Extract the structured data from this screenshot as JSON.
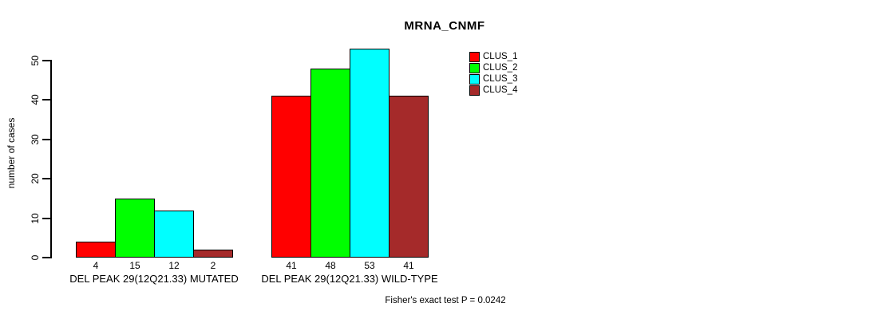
{
  "chart_data": {
    "type": "bar",
    "title": "MRNA_CNMF",
    "ylabel": "number of cases",
    "xlabel": "",
    "ylim": [
      0,
      50
    ],
    "yticks": [
      0,
      10,
      20,
      30,
      40,
      50
    ],
    "grid": false,
    "legend_position": "top-right",
    "categories": [
      "DEL PEAK 29(12Q21.33) MUTATED",
      "DEL PEAK 29(12Q21.33) WILD-TYPE"
    ],
    "series": [
      {
        "name": "CLUS_1",
        "color": "#ff0000",
        "values": [
          4,
          41
        ]
      },
      {
        "name": "CLUS_2",
        "color": "#00ff00",
        "values": [
          15,
          48
        ]
      },
      {
        "name": "CLUS_3",
        "color": "#00ffff",
        "values": [
          12,
          53
        ]
      },
      {
        "name": "CLUS_4",
        "color": "#a52a2a",
        "values": [
          2,
          41
        ]
      }
    ],
    "bar_value_labels": [
      [
        4,
        15,
        12,
        2
      ],
      [
        41,
        48,
        53,
        41
      ]
    ],
    "annotation": "Fisher's exact test P = 0.0242",
    "bar_border_color": "#000000",
    "axis_color": "#000000",
    "background_color": "#ffffff"
  }
}
